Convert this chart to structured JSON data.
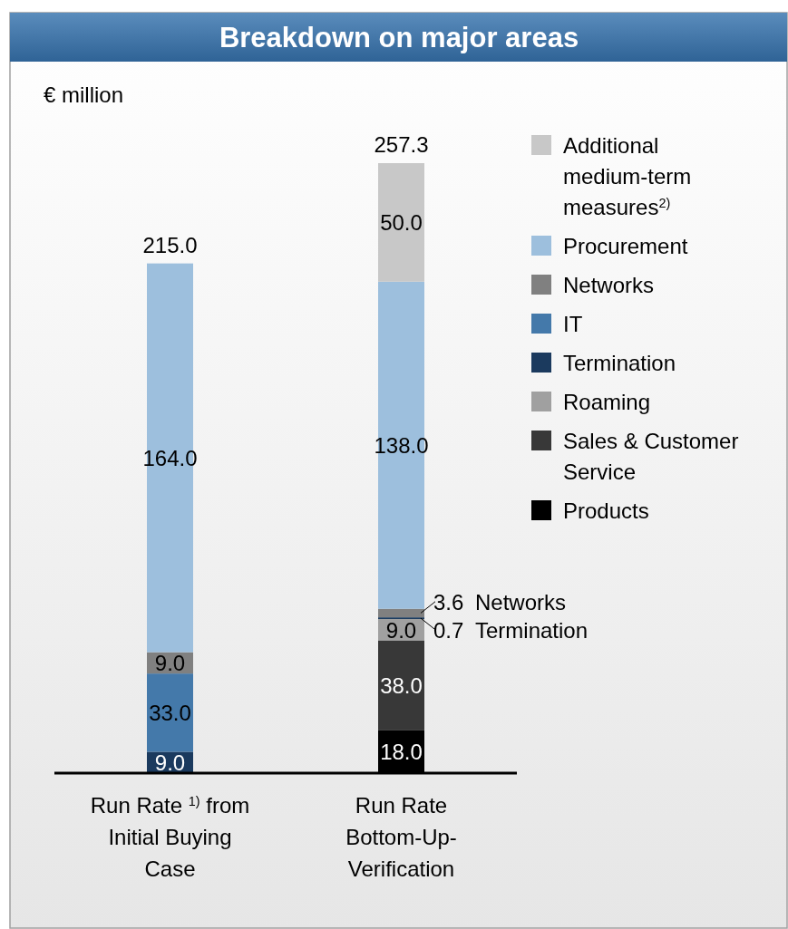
{
  "chart_data": {
    "type": "bar",
    "title": "Breakdown on major areas",
    "ylabel": "€ million",
    "stacked": true,
    "legend": "right",
    "categories": [
      "Run Rate $^{1)}$ from Initial Buying Case",
      "Run Rate Bottom-Up-Verification"
    ],
    "series": [
      {
        "name": "Products",
        "color": "#000000",
        "values": [
          null,
          18.0
        ],
        "value_labels": [
          null,
          "18.0"
        ]
      },
      {
        "name": "Sales & Customer Service",
        "color": "#383838",
        "values": [
          null,
          38.0
        ],
        "value_labels": [
          null,
          "38.0"
        ]
      },
      {
        "name": "Roaming",
        "color": "#a0a0a0",
        "values": [
          null,
          9.0
        ],
        "value_labels": [
          null,
          "9.0"
        ]
      },
      {
        "name": "Termination",
        "color": "#1b3a5e",
        "values": [
          9.0,
          0.7
        ],
        "value_labels": [
          "9.0",
          "0.7"
        ]
      },
      {
        "name": "IT",
        "color": "#4479aa",
        "values": [
          33.0,
          null
        ],
        "value_labels": [
          "33.0",
          null
        ]
      },
      {
        "name": "Networks",
        "color": "#808080",
        "values": [
          9.0,
          3.6
        ],
        "value_labels": [
          "9.0",
          "3.6"
        ]
      },
      {
        "name": "Procurement",
        "color": "#9dbfdd",
        "values": [
          164.0,
          138.0
        ],
        "value_labels": [
          "164.0",
          "138.0"
        ]
      },
      {
        "name": "Additional medium-term measures$^{2)}$",
        "color": "#c8c8c8",
        "values": [
          null,
          50.0
        ],
        "value_labels": [
          null,
          "50.0"
        ]
      }
    ],
    "totals": [
      "215.0",
      "257.3"
    ]
  }
}
